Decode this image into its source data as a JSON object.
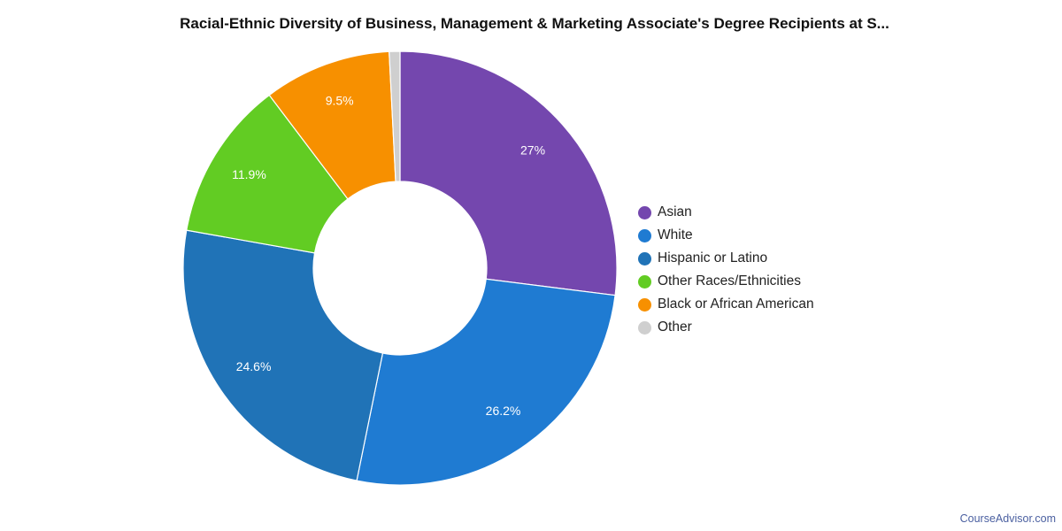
{
  "chart_data": {
    "type": "pie",
    "title": "Racial-Ethnic Diversity of Business, Management & Marketing Associate's Degree Recipients at S...",
    "slices": [
      {
        "name": "Asian",
        "value": 27.0,
        "label": "27%",
        "color": "#7447ae"
      },
      {
        "name": "White",
        "value": 26.2,
        "label": "26.2%",
        "color": "#1f7bd2"
      },
      {
        "name": "Hispanic or Latino",
        "value": 24.6,
        "label": "24.6%",
        "color": "#2073b7"
      },
      {
        "name": "Other Races/Ethnicities",
        "value": 11.9,
        "label": "11.9%",
        "color": "#62cc23"
      },
      {
        "name": "Black or African American",
        "value": 9.5,
        "label": "9.5%",
        "color": "#f79000"
      },
      {
        "name": "Other",
        "value": 0.8,
        "label": "",
        "color": "#cfcfcf"
      }
    ],
    "legend_position": "right",
    "donut": true
  },
  "credit": "CourseAdvisor.com"
}
